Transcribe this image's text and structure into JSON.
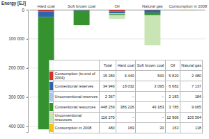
{
  "chart_data": [
    {
      "type": "bar",
      "stacked": true,
      "y_label": "Energy [EJ]",
      "categories": [
        "Hard coal",
        "Soft brown coal",
        "Oil",
        "Natural gas",
        "Consumption in 2008"
      ],
      "series": [
        {
          "name": "Consumption (to end of 2004)",
          "color": "#d7312b",
          "values": [
            6440,
            540,
            5820,
            2480,
            null
          ]
        },
        {
          "name": "Conventional reserves",
          "color": "#2f63ad",
          "values": [
            18032,
            3095,
            6682,
            7137,
            null
          ]
        },
        {
          "name": "Unconventional reserves",
          "color": "#a8c6e6",
          "values": [
            null,
            null,
            2183,
            184,
            null
          ]
        },
        {
          "name": "Conventional resources",
          "color": "#35922f",
          "values": [
            386226,
            49183,
            3785,
            9065,
            null
          ]
        },
        {
          "name": "Unconventional resources",
          "color": "#c9e5b4",
          "values": [
            null,
            null,
            12906,
            103364,
            null
          ]
        },
        {
          "name": "Consumption in 2008",
          "color": "#f2c416",
          "values": [
            null,
            null,
            null,
            null,
            480
          ]
        }
      ],
      "ylim": [
        0,
        420000
      ],
      "yticks": [
        0,
        {
          "value": 100000,
          "label": "100 000"
        },
        {
          "value": 200000,
          "label": "200 000"
        },
        {
          "value": 300000,
          "label": "300 000"
        },
        {
          "value": 400000,
          "label": "400 000"
        }
      ],
      "grid": true
    },
    {
      "type": "table",
      "columns": [
        "Total",
        "Hard coal",
        "Soft brown coal",
        "Oil",
        "Natural gas"
      ],
      "rows": [
        [
          "15 280",
          "6 440",
          "540",
          "5 820",
          "2 480"
        ],
        [
          "34 946",
          "18 032",
          "3 095",
          "6 682",
          "7 137"
        ],
        [
          "2 367",
          "–",
          "–",
          "2 183",
          "184"
        ],
        [
          "448 259",
          "386 226",
          "49 183",
          "3 785",
          "9 065"
        ],
        [
          "116 270",
          "–",
          "–",
          "12 906",
          "103 364"
        ],
        [
          "480",
          "169",
          "30",
          "163",
          "118"
        ]
      ]
    }
  ]
}
